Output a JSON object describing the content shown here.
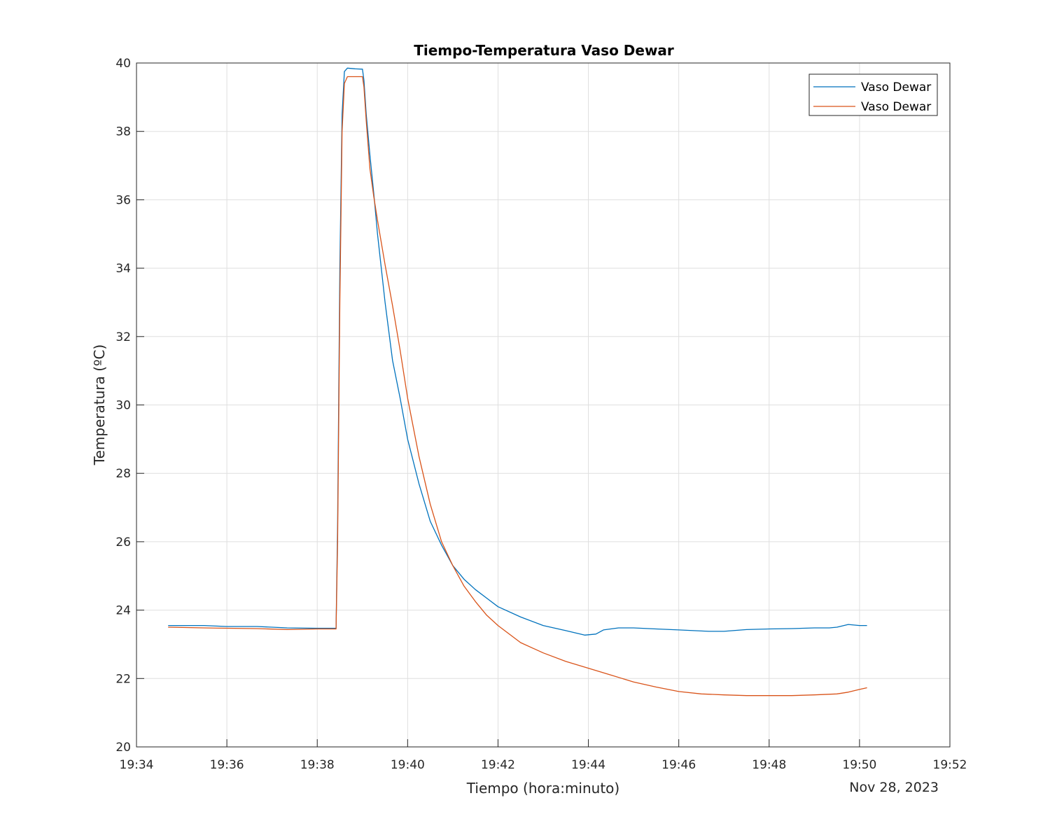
{
  "chart_data": {
    "type": "line",
    "title": "Tiempo-Temperatura Vaso Dewar",
    "xlabel": "Tiempo (hora:minuto)",
    "ylabel": "Temperatura (ºC)",
    "date_label": "Nov 28, 2023",
    "xlim": [
      "19:34",
      "19:52"
    ],
    "ylim": [
      20,
      40
    ],
    "x_ticks": [
      "19:34",
      "19:36",
      "19:38",
      "19:40",
      "19:42",
      "19:44",
      "19:46",
      "19:48",
      "19:50",
      "19:52"
    ],
    "y_ticks": [
      20,
      22,
      24,
      26,
      28,
      30,
      32,
      34,
      36,
      38,
      40
    ],
    "grid": true,
    "legend_position": "top-right",
    "series": [
      {
        "name": "Vaso Dewar",
        "color": "#0072bd",
        "x": [
          "19:34:42",
          "19:35:30",
          "19:36:00",
          "19:36:40",
          "19:37:20",
          "19:38:00",
          "19:38:25",
          "19:38:27",
          "19:38:30",
          "19:38:33",
          "19:38:36",
          "19:38:40",
          "19:38:50",
          "19:39:00",
          "19:39:02",
          "19:39:05",
          "19:39:10",
          "19:39:15",
          "19:39:20",
          "19:39:30",
          "19:39:40",
          "19:39:50",
          "19:40:00",
          "19:40:15",
          "19:40:30",
          "19:40:45",
          "19:41:00",
          "19:41:15",
          "19:41:30",
          "19:41:45",
          "19:42:00",
          "19:42:30",
          "19:43:00",
          "19:43:30",
          "19:43:55",
          "19:44:10",
          "19:44:20",
          "19:44:40",
          "19:45:00",
          "19:45:30",
          "19:46:00",
          "19:46:40",
          "19:47:00",
          "19:47:30",
          "19:48:00",
          "19:48:30",
          "19:49:00",
          "19:49:20",
          "19:49:30",
          "19:49:45",
          "19:50:00",
          "19:50:10"
        ],
        "values": [
          23.55,
          23.55,
          23.52,
          23.52,
          23.48,
          23.47,
          23.47,
          26.5,
          34.0,
          38.5,
          39.75,
          39.85,
          39.83,
          39.82,
          39.5,
          38.5,
          37.3,
          36.2,
          35.0,
          33.0,
          31.3,
          30.2,
          29.0,
          27.7,
          26.6,
          25.9,
          25.3,
          24.9,
          24.6,
          24.35,
          24.1,
          23.8,
          23.55,
          23.4,
          23.27,
          23.3,
          23.42,
          23.48,
          23.48,
          23.45,
          23.42,
          23.38,
          23.38,
          23.43,
          23.45,
          23.46,
          23.48,
          23.48,
          23.5,
          23.58,
          23.55,
          23.55
        ]
      },
      {
        "name": "Vaso Dewar",
        "color": "#d95319",
        "x": [
          "19:34:42",
          "19:35:30",
          "19:36:00",
          "19:36:40",
          "19:37:20",
          "19:38:00",
          "19:38:25",
          "19:38:27",
          "19:38:30",
          "19:38:33",
          "19:38:36",
          "19:38:40",
          "19:38:50",
          "19:39:00",
          "19:39:02",
          "19:39:05",
          "19:39:10",
          "19:39:15",
          "19:39:20",
          "19:39:30",
          "19:39:40",
          "19:39:50",
          "19:40:00",
          "19:40:15",
          "19:40:30",
          "19:40:45",
          "19:41:00",
          "19:41:15",
          "19:41:30",
          "19:41:45",
          "19:42:00",
          "19:42:30",
          "19:43:00",
          "19:43:30",
          "19:44:00",
          "19:44:30",
          "19:45:00",
          "19:45:30",
          "19:46:00",
          "19:46:30",
          "19:47:00",
          "19:47:30",
          "19:48:00",
          "19:48:30",
          "19:49:00",
          "19:49:30",
          "19:49:45",
          "19:50:00",
          "19:50:10"
        ],
        "values": [
          23.5,
          23.48,
          23.47,
          23.46,
          23.43,
          23.45,
          23.45,
          26.0,
          33.0,
          38.0,
          39.4,
          39.6,
          39.6,
          39.6,
          39.3,
          38.3,
          36.9,
          36.1,
          35.4,
          34.1,
          32.9,
          31.6,
          30.2,
          28.5,
          27.1,
          26.0,
          25.3,
          24.7,
          24.25,
          23.85,
          23.55,
          23.05,
          22.75,
          22.5,
          22.3,
          22.1,
          21.9,
          21.75,
          21.62,
          21.55,
          21.52,
          21.5,
          21.5,
          21.5,
          21.52,
          21.55,
          21.6,
          21.68,
          21.73
        ]
      }
    ]
  }
}
